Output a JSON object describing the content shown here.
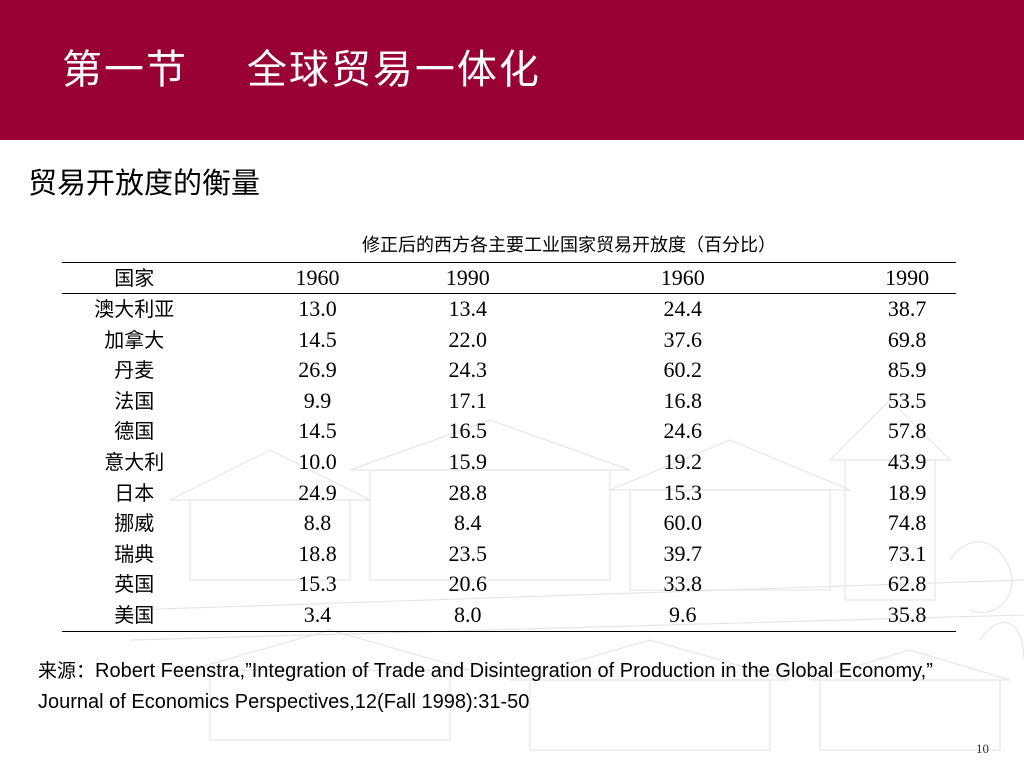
{
  "header": {
    "title": "第一节    全球贸易一体化",
    "band_color": "#990033"
  },
  "subtitle": "贸易开放度的衡量",
  "table": {
    "caption": "修正后的西方各主要工业国家贸易开放度（百分比）",
    "columns": [
      "国家",
      "1960",
      "1990",
      "1960",
      "1990"
    ],
    "rows": [
      [
        "澳大利亚",
        "13.0",
        "13.4",
        "24.4",
        "38.7"
      ],
      [
        "加拿大",
        "14.5",
        "22.0",
        "37.6",
        "69.8"
      ],
      [
        "丹麦",
        "26.9",
        "24.3",
        "60.2",
        "85.9"
      ],
      [
        "法国",
        "9.9",
        "17.1",
        "16.8",
        "53.5"
      ],
      [
        "德国",
        "14.5",
        "16.5",
        "24.6",
        "57.8"
      ],
      [
        "意大利",
        "10.0",
        "15.9",
        "19.2",
        "43.9"
      ],
      [
        "日本",
        "24.9",
        "28.8",
        "15.3",
        "18.9"
      ],
      [
        "挪威",
        "8.8",
        "8.4",
        "60.0",
        "74.8"
      ],
      [
        "瑞典",
        "18.8",
        "23.5",
        "39.7",
        "73.1"
      ],
      [
        "英国",
        "15.3",
        "20.6",
        "33.8",
        "62.8"
      ],
      [
        "美国",
        "3.4",
        "8.0",
        "9.6",
        "35.8"
      ]
    ]
  },
  "source": {
    "label": "来源：",
    "text": "Robert Feenstra,”Integration of Trade and Disintegration of Production in the Global Economy,” Journal of Economics Perspectives,12(Fall 1998):31-50"
  },
  "page_number": "10"
}
